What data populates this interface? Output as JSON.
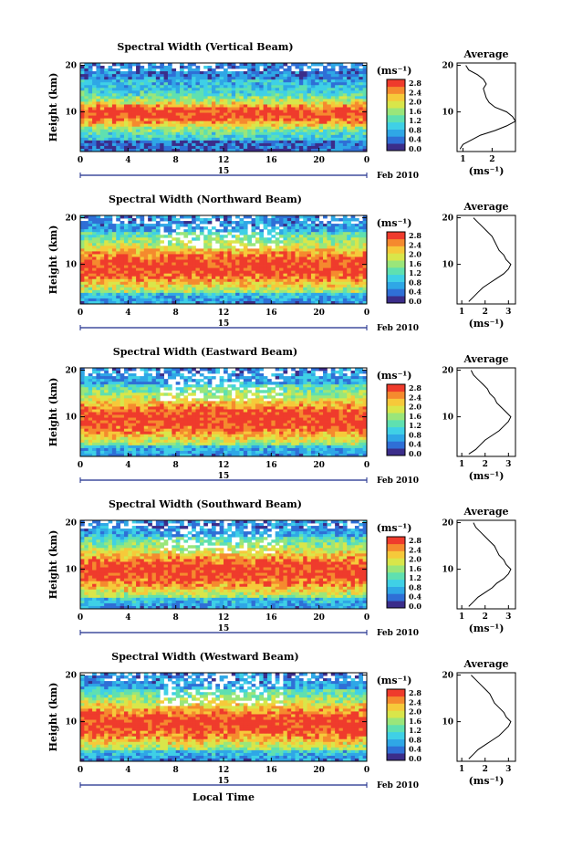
{
  "chart_data": [
    {
      "type": "heatmap",
      "title": "Spectral Width (Vertical Beam)",
      "ylabel": "Height (km)",
      "x_ticks": [
        "0",
        "4",
        "8",
        "12",
        "16",
        "20",
        "0"
      ],
      "y_ticks": [
        "20",
        "10"
      ],
      "day_label": "15",
      "date_label": "Feb 2010",
      "xlim": [
        0,
        24
      ],
      "ylim": [
        1.5,
        20.5
      ],
      "colorbar": {
        "unit": "(ms⁻¹)",
        "ticks": [
          "2.8",
          "2.4",
          "2.0",
          "1.6",
          "1.2",
          "0.8",
          "0.4",
          "0.0"
        ]
      },
      "profile": {
        "title": "Average",
        "xlabel": "(ms⁻¹)",
        "x_ticks": [
          "1",
          "2"
        ],
        "y_ticks": [
          "20",
          "10"
        ],
        "xlim": [
          0.8,
          2.8
        ],
        "ylim": [
          1.5,
          20.5
        ],
        "heights": [
          2,
          3,
          4,
          5,
          6,
          7,
          8,
          9,
          10,
          11,
          12,
          13,
          14,
          15,
          16,
          17,
          18,
          19,
          20
        ],
        "values": [
          0.9,
          1.0,
          1.3,
          1.6,
          2.1,
          2.5,
          2.8,
          2.7,
          2.5,
          2.1,
          1.9,
          1.8,
          1.75,
          1.7,
          1.8,
          1.7,
          1.5,
          1.2,
          1.1
        ]
      }
    },
    {
      "type": "heatmap",
      "title": "Spectral Width (Northward Beam)",
      "ylabel": "Height (km)",
      "x_ticks": [
        "0",
        "4",
        "8",
        "12",
        "16",
        "20",
        "0"
      ],
      "y_ticks": [
        "20",
        "10"
      ],
      "day_label": "15",
      "date_label": "Feb 2010",
      "xlim": [
        0,
        24
      ],
      "ylim": [
        1.5,
        20.5
      ],
      "colorbar": {
        "unit": "(ms⁻¹)",
        "ticks": [
          "2.8",
          "2.4",
          "2.0",
          "1.6",
          "1.2",
          "0.8",
          "0.4",
          "0.0"
        ]
      },
      "profile": {
        "title": "Average",
        "xlabel": "(ms⁻¹)",
        "x_ticks": [
          "1",
          "2",
          "3"
        ],
        "y_ticks": [
          "20",
          "10"
        ],
        "xlim": [
          0.8,
          3.3
        ],
        "ylim": [
          1.5,
          20.5
        ],
        "heights": [
          2,
          3,
          4,
          5,
          6,
          7,
          8,
          9,
          10,
          11,
          12,
          13,
          14,
          15,
          16,
          17,
          18,
          19,
          20
        ],
        "values": [
          1.3,
          1.5,
          1.7,
          1.9,
          2.2,
          2.5,
          2.8,
          3.0,
          3.1,
          2.9,
          2.8,
          2.6,
          2.5,
          2.4,
          2.3,
          2.1,
          1.9,
          1.7,
          1.5
        ]
      }
    },
    {
      "type": "heatmap",
      "title": "Spectral Width (Eastward Beam)",
      "ylabel": "Height (km)",
      "x_ticks": [
        "0",
        "4",
        "8",
        "12",
        "16",
        "20",
        "0"
      ],
      "y_ticks": [
        "20",
        "10"
      ],
      "day_label": "15",
      "date_label": "Feb 2010",
      "xlim": [
        0,
        24
      ],
      "ylim": [
        1.5,
        20.5
      ],
      "colorbar": {
        "unit": "(ms⁻¹)",
        "ticks": [
          "2.8",
          "2.4",
          "2.0",
          "1.6",
          "1.2",
          "0.8",
          "0.4",
          "0.0"
        ]
      },
      "profile": {
        "title": "Average",
        "xlabel": "(ms⁻¹)",
        "x_ticks": [
          "1",
          "2",
          "3"
        ],
        "y_ticks": [
          "20",
          "10"
        ],
        "xlim": [
          0.8,
          3.3
        ],
        "ylim": [
          1.5,
          20.5
        ],
        "heights": [
          2,
          3,
          4,
          5,
          6,
          7,
          8,
          9,
          10,
          11,
          12,
          13,
          14,
          15,
          16,
          17,
          18,
          19,
          20
        ],
        "values": [
          1.3,
          1.6,
          1.8,
          2.0,
          2.3,
          2.6,
          2.8,
          3.0,
          3.1,
          2.9,
          2.7,
          2.5,
          2.4,
          2.2,
          2.1,
          1.9,
          1.7,
          1.5,
          1.4
        ]
      }
    },
    {
      "type": "heatmap",
      "title": "Spectral Width (Southward Beam)",
      "ylabel": "Height (km)",
      "x_ticks": [
        "0",
        "4",
        "8",
        "12",
        "16",
        "20",
        "0"
      ],
      "y_ticks": [
        "20",
        "10"
      ],
      "day_label": "15",
      "date_label": "Feb 2010",
      "xlim": [
        0,
        24
      ],
      "ylim": [
        1.5,
        20.5
      ],
      "colorbar": {
        "unit": "(ms⁻¹)",
        "ticks": [
          "2.8",
          "2.4",
          "2.0",
          "1.6",
          "1.2",
          "0.8",
          "0.4",
          "0.0"
        ]
      },
      "profile": {
        "title": "Average",
        "xlabel": "(ms⁻¹)",
        "x_ticks": [
          "1",
          "2",
          "3"
        ],
        "y_ticks": [
          "20",
          "10"
        ],
        "xlim": [
          0.8,
          3.3
        ],
        "ylim": [
          1.5,
          20.5
        ],
        "heights": [
          2,
          3,
          4,
          5,
          6,
          7,
          8,
          9,
          10,
          11,
          12,
          13,
          14,
          15,
          16,
          17,
          18,
          19,
          20
        ],
        "values": [
          1.3,
          1.5,
          1.7,
          2.0,
          2.3,
          2.5,
          2.8,
          3.0,
          3.1,
          2.9,
          2.8,
          2.6,
          2.5,
          2.4,
          2.2,
          2.0,
          1.8,
          1.6,
          1.5
        ]
      }
    },
    {
      "type": "heatmap",
      "title": "Spectral Width (Westward Beam)",
      "ylabel": "Height (km)",
      "x_ticks": [
        "0",
        "4",
        "8",
        "12",
        "16",
        "20",
        "0"
      ],
      "y_ticks": [
        "20",
        "10"
      ],
      "day_label": "15",
      "date_label": "Feb 2010",
      "xlabel": "Local Time",
      "xlim": [
        0,
        24
      ],
      "ylim": [
        1.5,
        20.5
      ],
      "colorbar": {
        "unit": "(ms⁻¹)",
        "ticks": [
          "2.8",
          "2.4",
          "2.0",
          "1.6",
          "1.2",
          "0.8",
          "0.4",
          "0.0"
        ]
      },
      "profile": {
        "title": "Average",
        "xlabel": "(ms⁻¹)",
        "x_ticks": [
          "1",
          "2",
          "3"
        ],
        "y_ticks": [
          "20",
          "10"
        ],
        "xlim": [
          0.8,
          3.3
        ],
        "ylim": [
          1.5,
          20.5
        ],
        "heights": [
          2,
          3,
          4,
          5,
          6,
          7,
          8,
          9,
          10,
          11,
          12,
          13,
          14,
          15,
          16,
          17,
          18,
          19,
          20
        ],
        "values": [
          1.3,
          1.5,
          1.7,
          2.0,
          2.3,
          2.6,
          2.8,
          3.0,
          3.1,
          2.9,
          2.8,
          2.6,
          2.4,
          2.3,
          2.2,
          2.0,
          1.8,
          1.6,
          1.4
        ]
      }
    }
  ],
  "colors": {
    "scale": [
      "#3b2d8a",
      "#2f6fd6",
      "#2fa7e6",
      "#3fd0e6",
      "#5fe0b0",
      "#9ae67a",
      "#d9e64a",
      "#f6c93a",
      "#f58a2e",
      "#ef3b2c"
    ]
  }
}
